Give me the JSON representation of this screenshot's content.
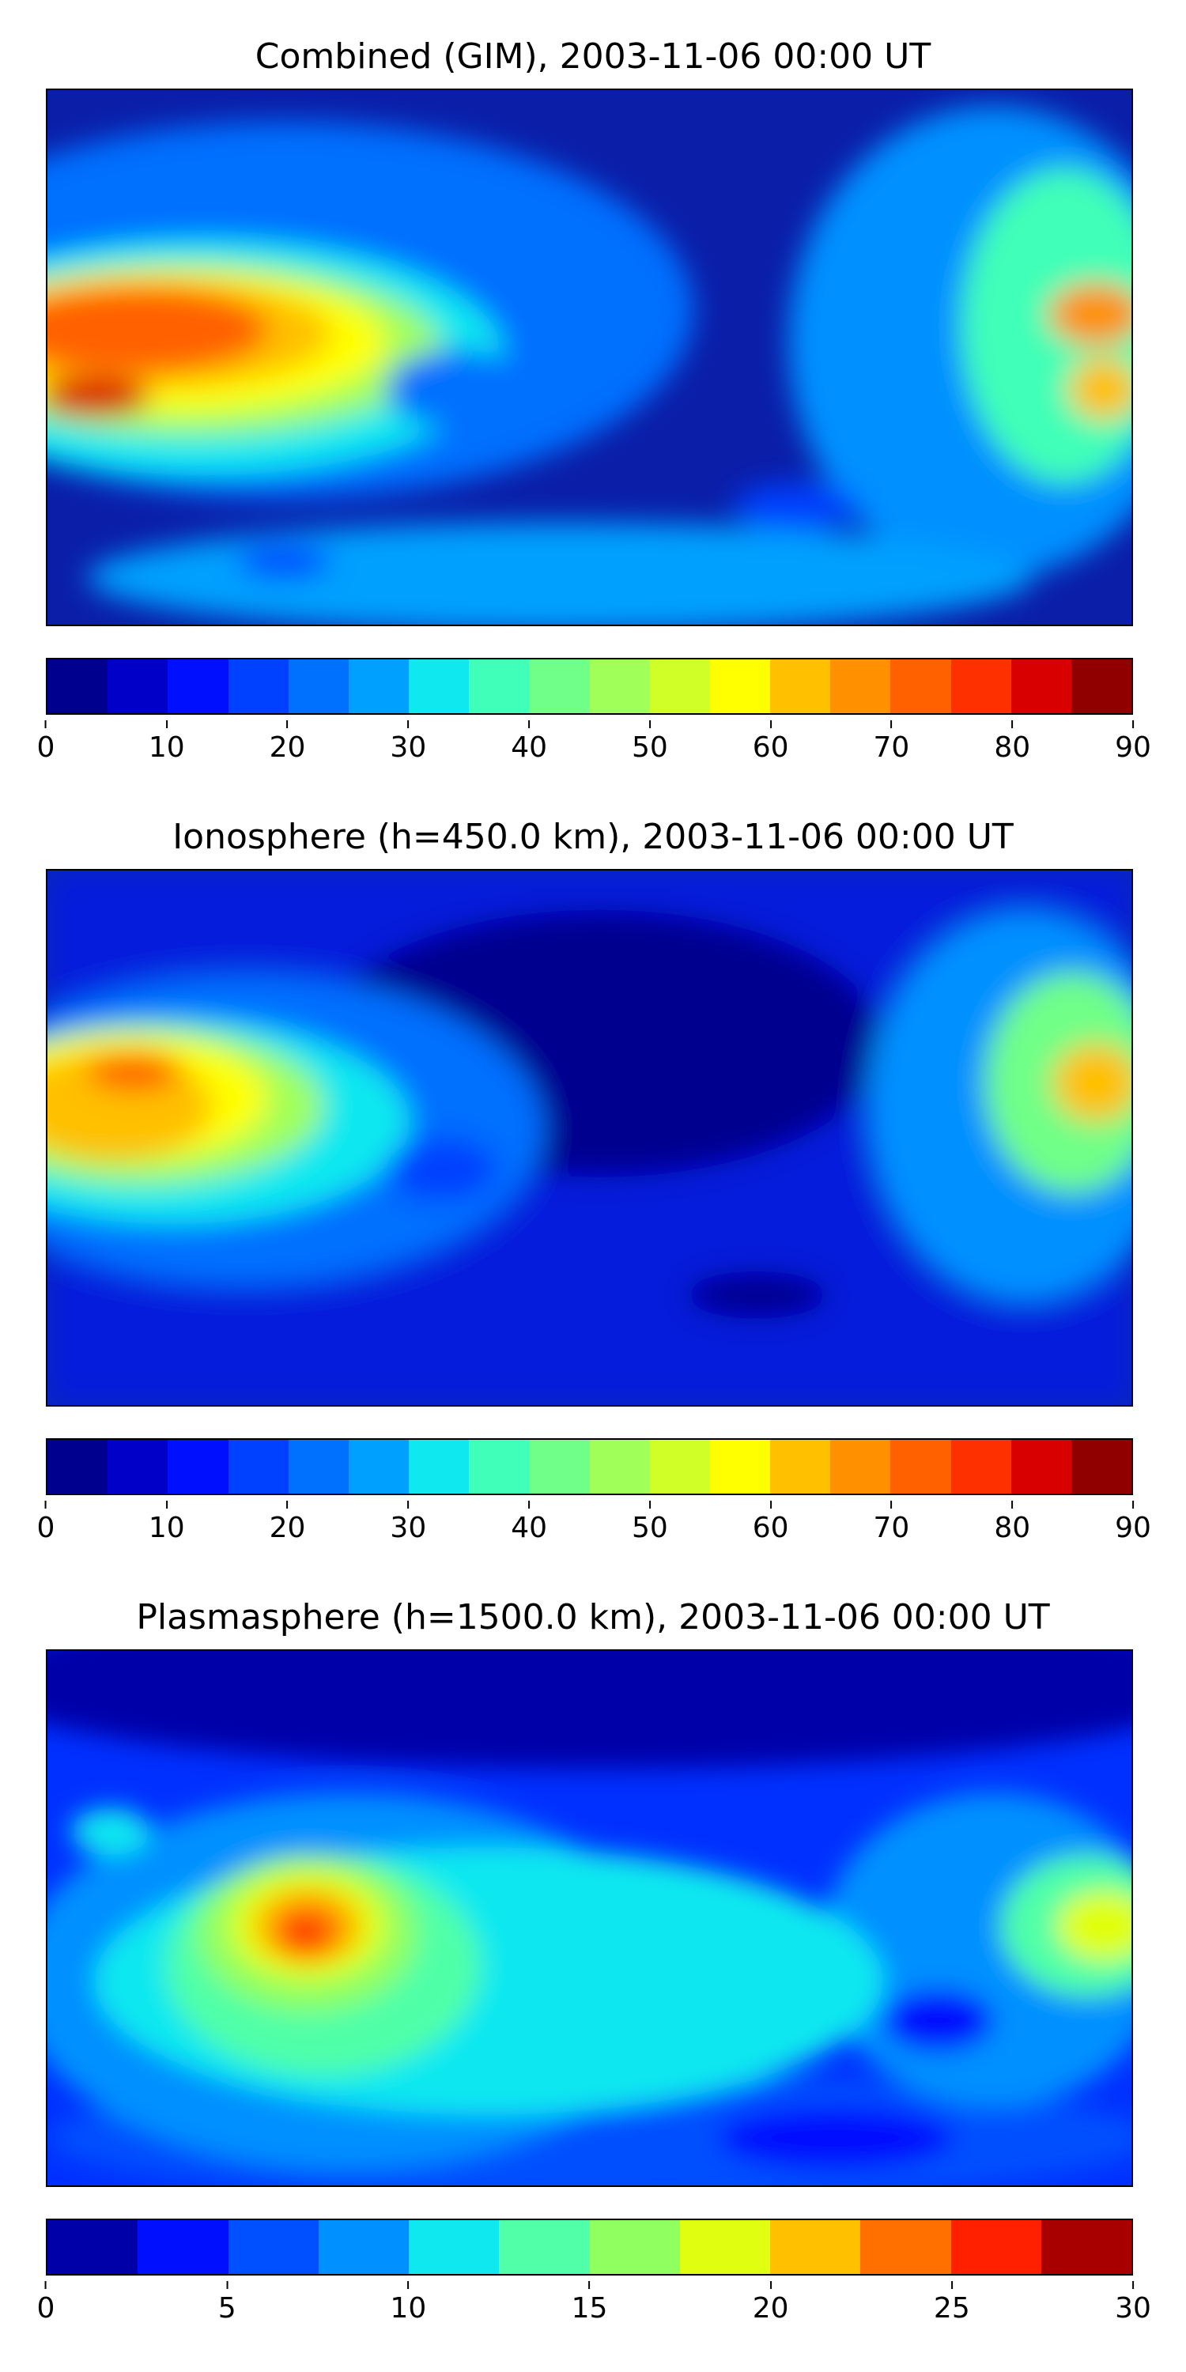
{
  "panels": [
    {
      "title": "Combined (GIM), 2003-11-06 00:00 UT",
      "colorbar": {
        "ticks": [
          "0",
          "10",
          "20",
          "30",
          "40",
          "50",
          "60",
          "70",
          "80",
          "90"
        ],
        "min": 0,
        "max": 90,
        "colors": [
          "#00008f",
          "#0000c8",
          "#0010ff",
          "#0040ff",
          "#0070ff",
          "#00a0ff",
          "#10e8f0",
          "#40ffb8",
          "#70ff88",
          "#a0ff58",
          "#d0ff28",
          "#ffff00",
          "#ffc000",
          "#ff9000",
          "#ff6000",
          "#ff3000",
          "#d80000",
          "#900000"
        ],
        "ocean_base": "#0a1ea8"
      }
    },
    {
      "title": "Ionosphere  (h=450.0 km), 2003-11-06 00:00 UT",
      "colorbar": {
        "ticks": [
          "0",
          "10",
          "20",
          "30",
          "40",
          "50",
          "60",
          "70",
          "80",
          "90"
        ],
        "min": 0,
        "max": 90,
        "colors": [
          "#00008f",
          "#0000c8",
          "#0010ff",
          "#0040ff",
          "#0070ff",
          "#00a0ff",
          "#10e8f0",
          "#40ffb8",
          "#70ff88",
          "#a0ff58",
          "#d0ff28",
          "#ffff00",
          "#ffc000",
          "#ff9000",
          "#ff6000",
          "#ff3000",
          "#d80000",
          "#900000"
        ],
        "ocean_base": "#0a22b8"
      }
    },
    {
      "title": "Plasmasphere (h=1500.0 km), 2003-11-06 00:00 UT",
      "colorbar": {
        "ticks": [
          "0",
          "5",
          "10",
          "15",
          "20",
          "25",
          "30"
        ],
        "min": 0,
        "max": 30,
        "colors": [
          "#0000a8",
          "#0010ff",
          "#0050ff",
          "#0090ff",
          "#10e8f0",
          "#50ffa8",
          "#90ff60",
          "#e0ff10",
          "#ffc000",
          "#ff7000",
          "#ff2000",
          "#a80000"
        ],
        "ocean_base": "#0030ff"
      }
    }
  ]
}
